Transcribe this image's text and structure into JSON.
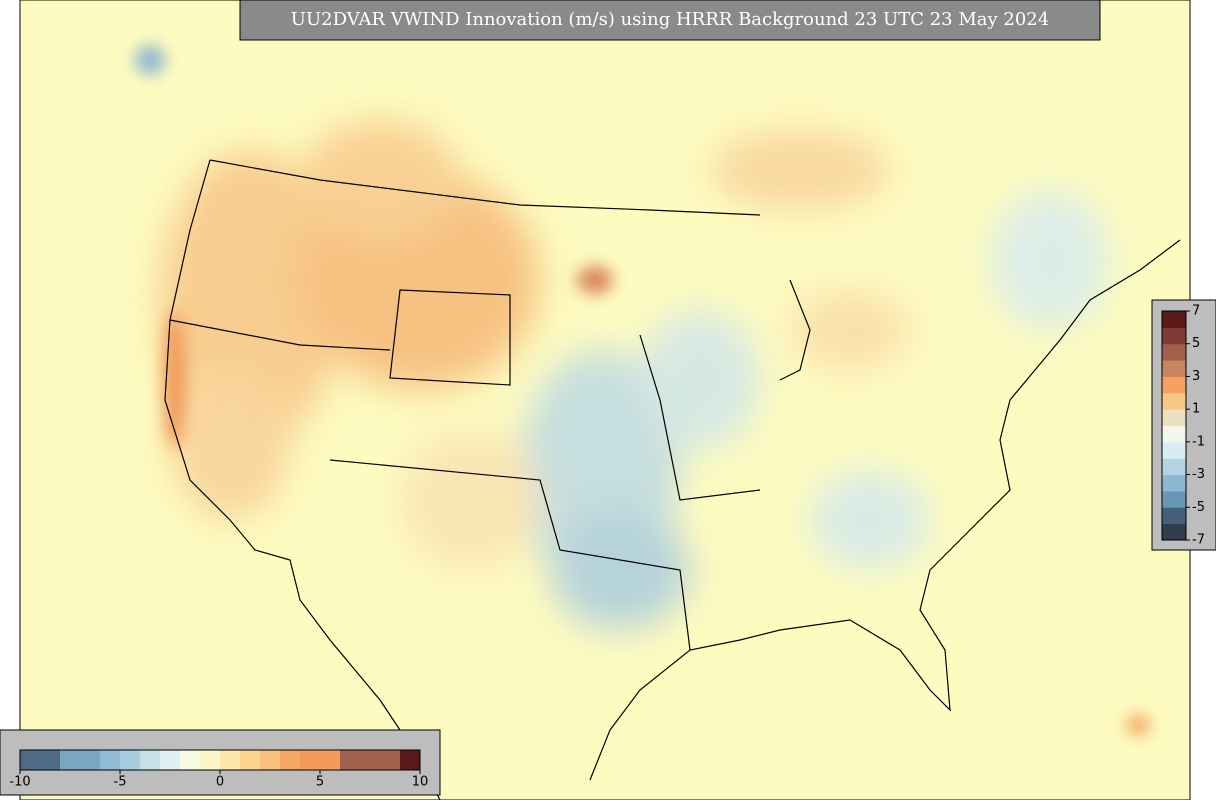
{
  "title": "UU2DVAR VWIND Innovation (m/s) using HRRR Background 23 UTC 23 May 2024",
  "colorbars": [
    {
      "orientation": "vertical",
      "range": [
        -7,
        7
      ],
      "ticks": [
        7,
        5,
        3,
        1,
        -1,
        -3,
        -5,
        -7
      ],
      "colors": [
        "#2f3d4c",
        "#46607a",
        "#6a96b8",
        "#8fb7d0",
        "#b3d3e3",
        "#d9ecf2",
        "#f3f6ea",
        "#e8e0c0",
        "#f6c884",
        "#f4a05e",
        "#c98560",
        "#a0604c",
        "#7e3a34",
        "#5a1a1a"
      ]
    },
    {
      "orientation": "horizontal",
      "range": [
        -10,
        10
      ],
      "ticks": [
        -10,
        -5,
        0,
        5,
        10
      ],
      "colors": [
        "#4e6a85",
        "#4e6a85",
        "#7aa6c4",
        "#7aa6c4",
        "#93bcd4",
        "#a9cbdf",
        "#c6e0ea",
        "#def0f2",
        "#f6fbe4",
        "#fdf5c8",
        "#fde7a8",
        "#fbd590",
        "#f8c07a",
        "#f5a865",
        "#f39b5c",
        "#f39b5c",
        "#a0604c",
        "#a0604c",
        "#a0604c",
        "#5a1a1a"
      ]
    }
  ]
}
